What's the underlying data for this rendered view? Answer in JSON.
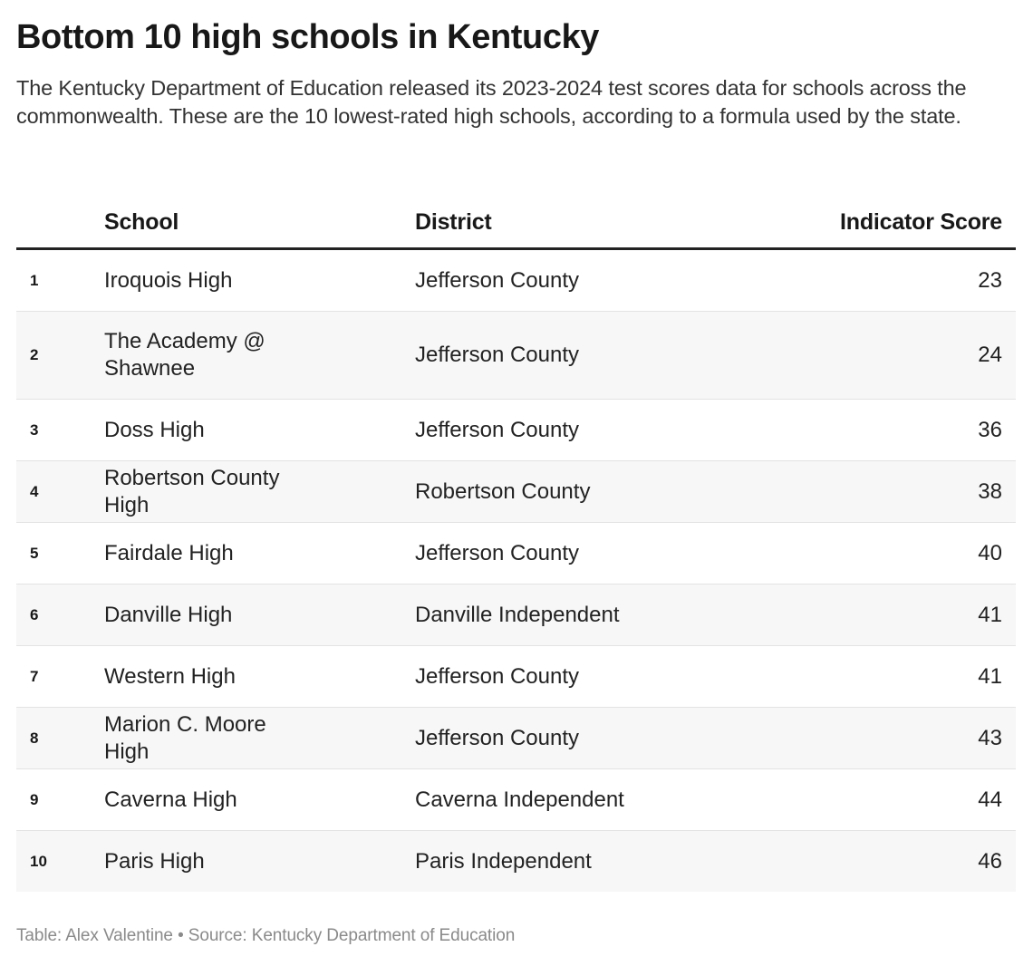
{
  "header": {
    "title": "Bottom 10 high schools in Kentucky",
    "subtitle": "The Kentucky Department of Education released its 2023-2024 test scores data for schools across the commonwealth. These are the 10 lowest-rated high schools, according to a formula used by the state."
  },
  "table": {
    "columns": {
      "rank": "",
      "school": "School",
      "district": "District",
      "score": "Indicator Score"
    },
    "rows": [
      {
        "rank": "1",
        "school": "Iroquois High",
        "district": "Jefferson County",
        "score": "23"
      },
      {
        "rank": "2",
        "school": "The Academy @ Shawnee",
        "district": "Jefferson County",
        "score": "24"
      },
      {
        "rank": "3",
        "school": "Doss High",
        "district": "Jefferson County",
        "score": "36"
      },
      {
        "rank": "4",
        "school": "Robertson County High",
        "district": "Robertson County",
        "score": "38"
      },
      {
        "rank": "5",
        "school": "Fairdale High",
        "district": "Jefferson County",
        "score": "40"
      },
      {
        "rank": "6",
        "school": "Danville High",
        "district": "Danville Independent",
        "score": "41"
      },
      {
        "rank": "7",
        "school": "Western High",
        "district": "Jefferson County",
        "score": "41"
      },
      {
        "rank": "8",
        "school": "Marion C. Moore High",
        "district": "Jefferson County",
        "score": "43"
      },
      {
        "rank": "9",
        "school": "Caverna High",
        "district": "Caverna Independent",
        "score": "44"
      },
      {
        "rank": "10",
        "school": "Paris High",
        "district": "Paris Independent",
        "score": "46"
      }
    ]
  },
  "footer": {
    "credit": "Table: Alex Valentine • Source: Kentucky Department of Education"
  },
  "colors": {
    "text": "#181818",
    "row_alt": "#f7f7f7",
    "header_rule": "#222222",
    "row_rule": "#e3e3e3",
    "footer_text": "#8a8a8a"
  }
}
